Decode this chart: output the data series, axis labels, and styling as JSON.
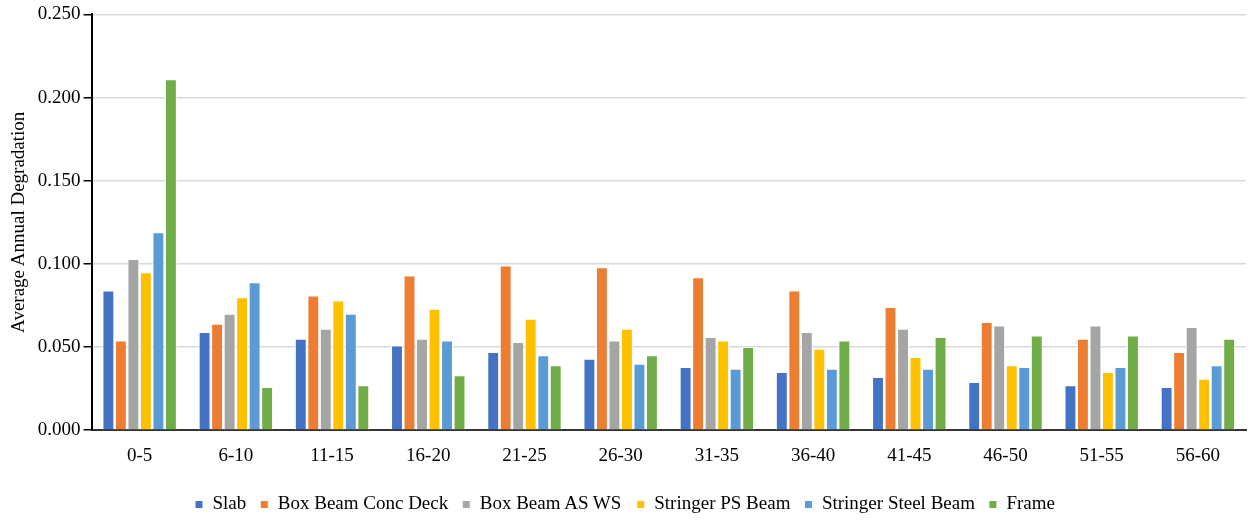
{
  "chart_data": {
    "type": "bar",
    "ylabel": "Average Annual Degradation",
    "categories": [
      "0-5",
      "6-10",
      "11-15",
      "16-20",
      "21-25",
      "26-30",
      "31-35",
      "36-40",
      "41-45",
      "46-50",
      "51-55",
      "56-60"
    ],
    "series": [
      {
        "name": "Slab",
        "color": "#4472c4",
        "values": [
          0.084,
          0.059,
          0.055,
          0.051,
          0.047,
          0.043,
          0.038,
          0.035,
          0.032,
          0.029,
          0.027,
          0.026
        ]
      },
      {
        "name": "Box Beam Conc Deck",
        "color": "#ed7d31",
        "values": [
          0.054,
          0.064,
          0.081,
          0.093,
          0.099,
          0.098,
          0.092,
          0.084,
          0.074,
          0.065,
          0.055,
          0.047
        ]
      },
      {
        "name": "Box Beam AS WS",
        "color": "#a5a5a5",
        "values": [
          0.103,
          0.07,
          0.061,
          0.055,
          0.053,
          0.054,
          0.056,
          0.059,
          0.061,
          0.063,
          0.063,
          0.062
        ]
      },
      {
        "name": "Stringer PS Beam",
        "color": "#ffc000",
        "values": [
          0.095,
          0.08,
          0.078,
          0.073,
          0.067,
          0.061,
          0.054,
          0.049,
          0.044,
          0.039,
          0.035,
          0.031
        ]
      },
      {
        "name": "Stringer Steel Beam",
        "color": "#5b9bd5",
        "values": [
          0.119,
          0.089,
          0.07,
          0.054,
          0.045,
          0.04,
          0.037,
          0.037,
          0.037,
          0.038,
          0.038,
          0.039
        ]
      },
      {
        "name": "Frame",
        "color": "#70ad47",
        "values": [
          0.211,
          0.026,
          0.027,
          0.033,
          0.039,
          0.045,
          0.05,
          0.054,
          0.056,
          0.057,
          0.057,
          0.055
        ]
      }
    ],
    "ylim": [
      0,
      0.25
    ],
    "yticks": [
      {
        "value": 0,
        "label": "0.000"
      },
      {
        "value": 0.05,
        "label": "0.050"
      },
      {
        "value": 0.1,
        "label": "0.100"
      },
      {
        "value": 0.15,
        "label": "0.150"
      },
      {
        "value": 0.2,
        "label": "0.200"
      },
      {
        "value": 0.25,
        "label": "0.250"
      }
    ],
    "grid": "y",
    "legend": "bottom"
  }
}
